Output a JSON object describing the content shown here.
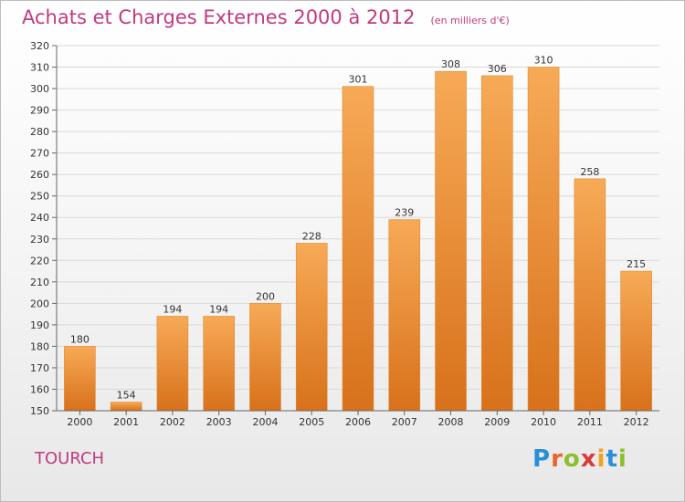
{
  "chart_data": {
    "type": "bar",
    "title": "Achats et Charges Externes 2000 à 2012",
    "subtitle": "(en milliers d'€)",
    "categories": [
      "2000",
      "2001",
      "2002",
      "2003",
      "2004",
      "2005",
      "2006",
      "2007",
      "2008",
      "2009",
      "2010",
      "2011",
      "2012"
    ],
    "values": [
      180,
      154,
      194,
      194,
      200,
      228,
      301,
      239,
      308,
      306,
      310,
      258,
      215
    ],
    "ylim": [
      150,
      320
    ],
    "yticks": [
      150,
      160,
      170,
      180,
      190,
      200,
      210,
      220,
      230,
      240,
      250,
      260,
      270,
      280,
      290,
      300,
      310,
      320
    ],
    "grid": true,
    "xlabel": "",
    "ylabel": "",
    "bar_color": "#f39a3c"
  },
  "commune": "TOURCH",
  "logo": {
    "text": "Proxiti",
    "colors": [
      "#2a8fd6",
      "#e8662a",
      "#8cbf2b",
      "#d93a3a",
      "#f0a21b",
      "#2a8fd6",
      "#8cbf2b"
    ]
  }
}
